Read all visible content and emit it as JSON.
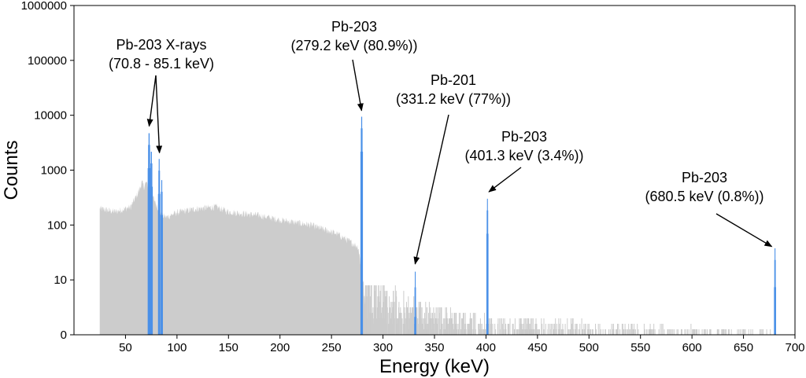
{
  "chart_data": {
    "type": "bar",
    "title": "",
    "xlabel": "Energy (keV)",
    "ylabel": "Counts",
    "x_scale": "linear",
    "y_scale": "symlog",
    "xlim": [
      0,
      700
    ],
    "ylim": [
      0,
      1000000
    ],
    "x_ticks": [
      50,
      100,
      150,
      200,
      250,
      300,
      350,
      400,
      450,
      500,
      550,
      600,
      650,
      700
    ],
    "y_ticks": [
      0,
      10,
      100,
      1000,
      10000,
      100000,
      1000000
    ],
    "y_tick_labels": [
      "0",
      "10",
      "100",
      "1000",
      "10000",
      "100000",
      "1000000"
    ],
    "grid": false,
    "colors": {
      "spectrum": "#cccccc",
      "highlight": "#4a90e8",
      "axis": "#000000"
    },
    "series": [
      {
        "role": "background spectrum",
        "points": [
          [
            25,
            200
          ],
          [
            40,
            175
          ],
          [
            55,
            215
          ],
          [
            62,
            380
          ],
          [
            66,
            600
          ],
          [
            68,
            500
          ],
          [
            70,
            600
          ],
          [
            85,
            150
          ],
          [
            90,
            140
          ],
          [
            100,
            170
          ],
          [
            120,
            200
          ],
          [
            138,
            215
          ],
          [
            150,
            175
          ],
          [
            180,
            150
          ],
          [
            200,
            125
          ],
          [
            230,
            100
          ],
          [
            255,
            70
          ],
          [
            272,
            45
          ],
          [
            276,
            40
          ],
          [
            283,
            5
          ],
          [
            300,
            3
          ],
          [
            330,
            2
          ],
          [
            400,
            1
          ],
          [
            520,
            0.7
          ],
          [
            620,
            0.4
          ],
          [
            679,
            0.3
          ]
        ]
      },
      {
        "role": "highlighted peaks",
        "peaks": [
          {
            "center": 72.8,
            "height": 5000,
            "width": 2.5
          },
          {
            "center": 75.0,
            "height": 2300,
            "width": 2.5
          },
          {
            "center": 82.6,
            "height": 1700,
            "width": 2.0
          },
          {
            "center": 85.1,
            "height": 700,
            "width": 2.0
          },
          {
            "center": 279.2,
            "height": 10000,
            "width": 2.2
          },
          {
            "center": 331.2,
            "height": 15,
            "width": 1.8
          },
          {
            "center": 401.3,
            "height": 320,
            "width": 1.8
          },
          {
            "center": 680.5,
            "height": 40,
            "width": 1.8
          }
        ]
      }
    ],
    "annotations": [
      {
        "lines": [
          "Pb-203 X-rays",
          "(70.8 - 85.1 keV)"
        ],
        "arrows_to": [
          [
            73,
            5200
          ],
          [
            83,
            1700
          ]
        ]
      },
      {
        "lines": [
          "Pb-203",
          "(279.2 keV (80.9%))"
        ],
        "arrows_to": [
          [
            279.2,
            10000
          ]
        ]
      },
      {
        "lines": [
          "Pb-201",
          "(331.2 keV (77%))"
        ],
        "arrows_to": [
          [
            331.2,
            15
          ]
        ]
      },
      {
        "lines": [
          "Pb-203",
          "(401.3 keV (3.4%))"
        ],
        "arrows_to": [
          [
            401.3,
            330
          ]
        ]
      },
      {
        "lines": [
          "Pb-203",
          "(680.5 keV (0.8%))"
        ],
        "arrows_to": [
          [
            680.5,
            38
          ]
        ]
      }
    ]
  }
}
